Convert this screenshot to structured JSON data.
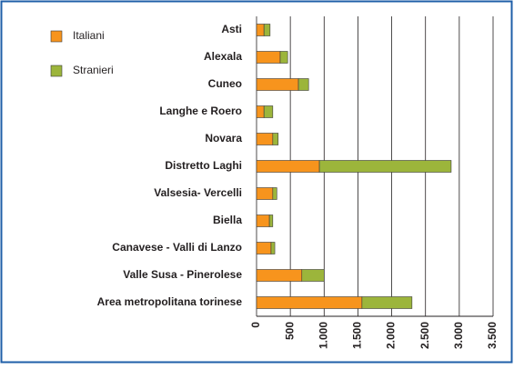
{
  "chart_data": {
    "type": "stacked-bar-horizontal",
    "categories": [
      "Asti",
      "Alexala",
      "Cuneo",
      "Langhe e Roero",
      "Novara",
      "Distretto Laghi",
      "Valsesia- Vercelli",
      "Biella",
      "Canavese - Valli di Lanzo",
      "Valle Susa - Pinerolese",
      "Area metropolitana torinese"
    ],
    "series": [
      {
        "name": "Italiani",
        "color": "#f7941d",
        "values": [
          110,
          350,
          620,
          110,
          240,
          930,
          240,
          190,
          215,
          670,
          1560
        ]
      },
      {
        "name": "Stranieri",
        "color": "#9cb53b",
        "values": [
          90,
          110,
          150,
          130,
          80,
          1950,
          60,
          50,
          55,
          330,
          740
        ]
      }
    ],
    "xlim": [
      0,
      3500
    ],
    "xticks": [
      0,
      500,
      {
        "value": 1000,
        "label": "1.000"
      },
      {
        "value": 1500,
        "label": "1.500"
      },
      {
        "value": 2000,
        "label": "2.000"
      },
      {
        "value": 2500,
        "label": "2.500"
      },
      {
        "value": 3000,
        "label": "3.000"
      },
      {
        "value": 3500,
        "label": "3.500"
      }
    ],
    "grid": true,
    "legend": "top-left"
  }
}
